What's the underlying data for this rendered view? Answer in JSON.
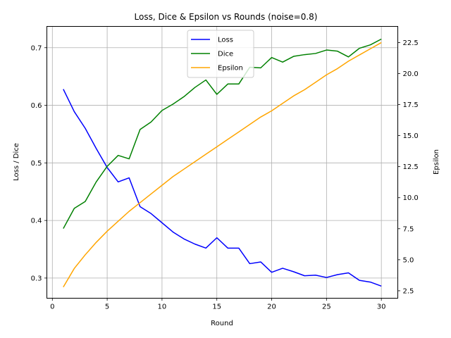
{
  "chart_data": {
    "type": "line",
    "title": "Loss, Dice & Epsilon vs Rounds (noise=0.8)",
    "xlabel": "Round",
    "ylabel_left": "Loss / Dice",
    "ylabel_right": "Epsilon",
    "xlim": [
      -0.5,
      31.5
    ],
    "ylim_left": [
      0.265,
      0.737
    ],
    "ylim_right": [
      1.9,
      23.8
    ],
    "xticks": [
      0,
      5,
      10,
      15,
      20,
      25,
      30
    ],
    "yticks_left": [
      0.3,
      0.4,
      0.5,
      0.6,
      0.7
    ],
    "yticks_right": [
      2.5,
      5.0,
      7.5,
      10.0,
      12.5,
      15.0,
      17.5,
      20.0,
      22.5
    ],
    "grid": true,
    "legend_position": "upper center",
    "x": [
      1,
      2,
      3,
      4,
      5,
      6,
      7,
      8,
      9,
      10,
      11,
      12,
      13,
      14,
      15,
      16,
      17,
      18,
      19,
      20,
      21,
      22,
      23,
      24,
      25,
      26,
      27,
      28,
      29,
      30
    ],
    "series": [
      {
        "name": "Loss",
        "axis": "left",
        "color": "#0000ff",
        "values": [
          0.628,
          0.589,
          0.56,
          0.525,
          0.492,
          0.467,
          0.474,
          0.424,
          0.412,
          0.396,
          0.38,
          0.368,
          0.359,
          0.352,
          0.37,
          0.352,
          0.352,
          0.325,
          0.328,
          0.31,
          0.317,
          0.311,
          0.304,
          0.305,
          0.301,
          0.306,
          0.309,
          0.296,
          0.293,
          0.286
        ]
      },
      {
        "name": "Dice",
        "axis": "left",
        "color": "#008000",
        "values": [
          0.386,
          0.421,
          0.433,
          0.467,
          0.494,
          0.513,
          0.507,
          0.558,
          0.571,
          0.591,
          0.602,
          0.615,
          0.631,
          0.644,
          0.619,
          0.637,
          0.637,
          0.666,
          0.665,
          0.683,
          0.675,
          0.685,
          0.688,
          0.69,
          0.696,
          0.694,
          0.684,
          0.699,
          0.705,
          0.715
        ]
      },
      {
        "name": "Epsilon",
        "axis": "right",
        "color": "#ffa500",
        "values": [
          2.8,
          4.3,
          5.4,
          6.4,
          7.3,
          8.1,
          8.9,
          9.6,
          10.3,
          11.0,
          11.7,
          12.3,
          12.9,
          13.5,
          14.1,
          14.7,
          15.3,
          15.9,
          16.5,
          17.0,
          17.6,
          18.2,
          18.7,
          19.3,
          19.9,
          20.4,
          21.0,
          21.5,
          22.0,
          22.5
        ]
      }
    ]
  }
}
